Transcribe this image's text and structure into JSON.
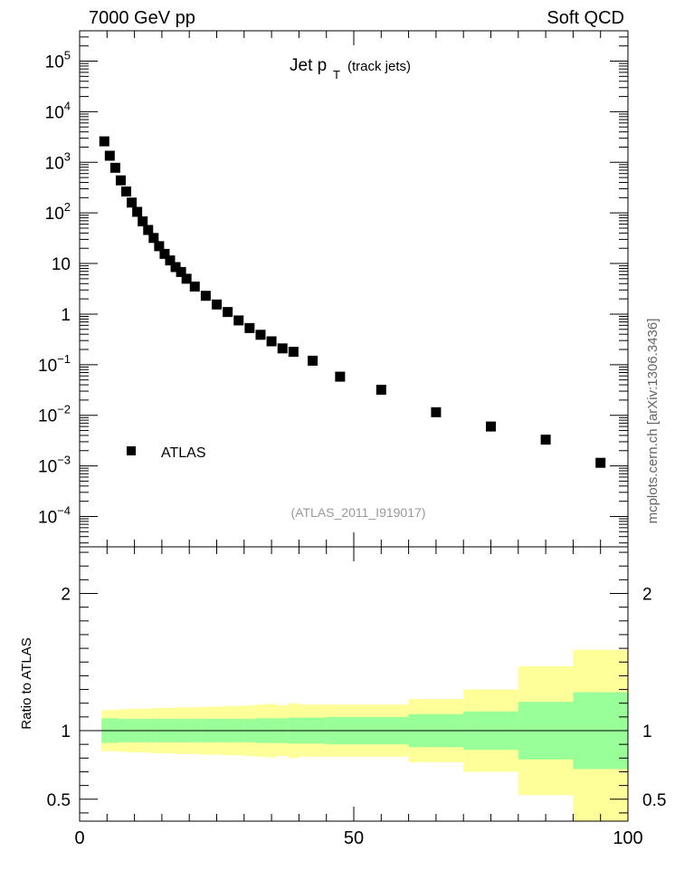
{
  "header": {
    "left": "7000 GeV pp",
    "right": "Soft QCD"
  },
  "side_label": "mcplots.cern.ch [arXiv:1306.3436]",
  "chart_data": [
    {
      "type": "scatter",
      "title_main": "Jet p",
      "title_sub": "T",
      "title_suffix": "(track jets)",
      "analysis_tag": "(ATLAS_2011_I919017)",
      "legend": "ATLAS",
      "yscale": "log",
      "xlim": [
        0,
        100
      ],
      "ylim_log10": [
        -4.6,
        5.6
      ],
      "y_ticks": [
        {
          "exp": 5,
          "base": "10",
          "sup": "5"
        },
        {
          "exp": 4,
          "base": "10",
          "sup": "4"
        },
        {
          "exp": 3,
          "base": "10",
          "sup": "3"
        },
        {
          "exp": 2,
          "base": "10",
          "sup": "2"
        },
        {
          "exp": 1,
          "base": "10",
          "sup": ""
        },
        {
          "exp": 0,
          "base": "1",
          "sup": ""
        },
        {
          "exp": -1,
          "base": "10",
          "sup": "−1"
        },
        {
          "exp": -2,
          "base": "10",
          "sup": "−2"
        },
        {
          "exp": -3,
          "base": "10",
          "sup": "−3"
        },
        {
          "exp": -4,
          "base": "10",
          "sup": "−4"
        }
      ],
      "series": [
        {
          "name": "ATLAS",
          "points": [
            [
              4.5,
              2600
            ],
            [
              5.5,
              1350
            ],
            [
              6.5,
              780
            ],
            [
              7.5,
              440
            ],
            [
              8.5,
              265
            ],
            [
              9.5,
              160
            ],
            [
              10.5,
              105
            ],
            [
              11.5,
              68
            ],
            [
              12.5,
              46
            ],
            [
              13.5,
              32
            ],
            [
              14.5,
              22
            ],
            [
              15.5,
              15.5
            ],
            [
              16.5,
              11.5
            ],
            [
              17.5,
              8.5
            ],
            [
              18.5,
              6.8
            ],
            [
              19.5,
              5.0
            ],
            [
              21,
              3.5
            ],
            [
              23,
              2.3
            ],
            [
              25,
              1.55
            ],
            [
              27,
              1.1
            ],
            [
              29,
              0.75
            ],
            [
              31,
              0.53
            ],
            [
              33,
              0.39
            ],
            [
              35,
              0.29
            ],
            [
              37,
              0.21
            ],
            [
              39,
              0.18
            ],
            [
              42.5,
              0.12
            ],
            [
              47.5,
              0.058
            ],
            [
              55,
              0.032
            ],
            [
              65,
              0.0115
            ],
            [
              75,
              0.006
            ],
            [
              85,
              0.0033
            ],
            [
              95,
              0.00115
            ]
          ]
        }
      ]
    },
    {
      "type": "area",
      "ylabel": "Ratio to ATLAS",
      "xlim": [
        0,
        100
      ],
      "ylim": [
        0.34,
        2.34
      ],
      "x_ticks": [
        "0",
        "50",
        "100"
      ],
      "y_ticks": [
        "0.5",
        "1",
        "2"
      ],
      "bands": [
        {
          "x": [
            4,
            5
          ],
          "inner": [
            0.91,
            1.09
          ],
          "outer": [
            0.85,
            1.15
          ]
        },
        {
          "x": [
            5,
            6
          ],
          "inner": [
            0.91,
            1.09
          ],
          "outer": [
            0.85,
            1.15
          ]
        },
        {
          "x": [
            6,
            7
          ],
          "inner": [
            0.91,
            1.09
          ],
          "outer": [
            0.85,
            1.15
          ]
        },
        {
          "x": [
            7,
            8
          ],
          "inner": [
            0.915,
            1.085
          ],
          "outer": [
            0.845,
            1.155
          ]
        },
        {
          "x": [
            8,
            9
          ],
          "inner": [
            0.915,
            1.085
          ],
          "outer": [
            0.845,
            1.155
          ]
        },
        {
          "x": [
            9,
            10
          ],
          "inner": [
            0.915,
            1.085
          ],
          "outer": [
            0.84,
            1.16
          ]
        },
        {
          "x": [
            10,
            11
          ],
          "inner": [
            0.915,
            1.085
          ],
          "outer": [
            0.84,
            1.16
          ]
        },
        {
          "x": [
            11,
            12
          ],
          "inner": [
            0.915,
            1.085
          ],
          "outer": [
            0.84,
            1.16
          ]
        },
        {
          "x": [
            12,
            13
          ],
          "inner": [
            0.915,
            1.085
          ],
          "outer": [
            0.84,
            1.16
          ]
        },
        {
          "x": [
            13,
            14
          ],
          "inner": [
            0.915,
            1.085
          ],
          "outer": [
            0.835,
            1.165
          ]
        },
        {
          "x": [
            14,
            15
          ],
          "inner": [
            0.915,
            1.085
          ],
          "outer": [
            0.835,
            1.165
          ]
        },
        {
          "x": [
            15,
            16
          ],
          "inner": [
            0.915,
            1.085
          ],
          "outer": [
            0.835,
            1.165
          ]
        },
        {
          "x": [
            16,
            17
          ],
          "inner": [
            0.915,
            1.085
          ],
          "outer": [
            0.835,
            1.165
          ]
        },
        {
          "x": [
            17,
            18
          ],
          "inner": [
            0.915,
            1.085
          ],
          "outer": [
            0.83,
            1.17
          ]
        },
        {
          "x": [
            18,
            19
          ],
          "inner": [
            0.915,
            1.085
          ],
          "outer": [
            0.83,
            1.17
          ]
        },
        {
          "x": [
            19,
            20
          ],
          "inner": [
            0.915,
            1.085
          ],
          "outer": [
            0.83,
            1.17
          ]
        },
        {
          "x": [
            20,
            22
          ],
          "inner": [
            0.915,
            1.085
          ],
          "outer": [
            0.83,
            1.17
          ]
        },
        {
          "x": [
            22,
            24
          ],
          "inner": [
            0.915,
            1.085
          ],
          "outer": [
            0.825,
            1.175
          ]
        },
        {
          "x": [
            24,
            26
          ],
          "inner": [
            0.915,
            1.085
          ],
          "outer": [
            0.825,
            1.175
          ]
        },
        {
          "x": [
            26,
            28
          ],
          "inner": [
            0.915,
            1.085
          ],
          "outer": [
            0.82,
            1.18
          ]
        },
        {
          "x": [
            28,
            30
          ],
          "inner": [
            0.915,
            1.085
          ],
          "outer": [
            0.82,
            1.18
          ]
        },
        {
          "x": [
            30,
            32
          ],
          "inner": [
            0.915,
            1.085
          ],
          "outer": [
            0.815,
            1.185
          ]
        },
        {
          "x": [
            32,
            34
          ],
          "inner": [
            0.91,
            1.09
          ],
          "outer": [
            0.81,
            1.19
          ]
        },
        {
          "x": [
            34,
            36
          ],
          "inner": [
            0.91,
            1.09
          ],
          "outer": [
            0.805,
            1.195
          ]
        },
        {
          "x": [
            36,
            38
          ],
          "inner": [
            0.91,
            1.09
          ],
          "outer": [
            0.815,
            1.185
          ]
        },
        {
          "x": [
            38,
            40
          ],
          "inner": [
            0.905,
            1.095
          ],
          "outer": [
            0.8,
            1.2
          ]
        },
        {
          "x": [
            40,
            45
          ],
          "inner": [
            0.905,
            1.095
          ],
          "outer": [
            0.81,
            1.19
          ]
        },
        {
          "x": [
            45,
            50
          ],
          "inner": [
            0.9,
            1.1
          ],
          "outer": [
            0.81,
            1.19
          ]
        },
        {
          "x": [
            50,
            60
          ],
          "inner": [
            0.9,
            1.1
          ],
          "outer": [
            0.81,
            1.19
          ]
        },
        {
          "x": [
            60,
            70
          ],
          "inner": [
            0.88,
            1.12
          ],
          "outer": [
            0.77,
            1.23
          ]
        },
        {
          "x": [
            70,
            80
          ],
          "inner": [
            0.86,
            1.14
          ],
          "outer": [
            0.7,
            1.3
          ]
        },
        {
          "x": [
            80,
            90
          ],
          "inner": [
            0.79,
            1.21
          ],
          "outer": [
            0.53,
            1.47
          ]
        },
        {
          "x": [
            90,
            100
          ],
          "inner": [
            0.72,
            1.28
          ],
          "outer": [
            0.34,
            1.59
          ]
        }
      ],
      "colors": {
        "inner": "#99ff99",
        "outer": "#ffff99"
      }
    }
  ]
}
